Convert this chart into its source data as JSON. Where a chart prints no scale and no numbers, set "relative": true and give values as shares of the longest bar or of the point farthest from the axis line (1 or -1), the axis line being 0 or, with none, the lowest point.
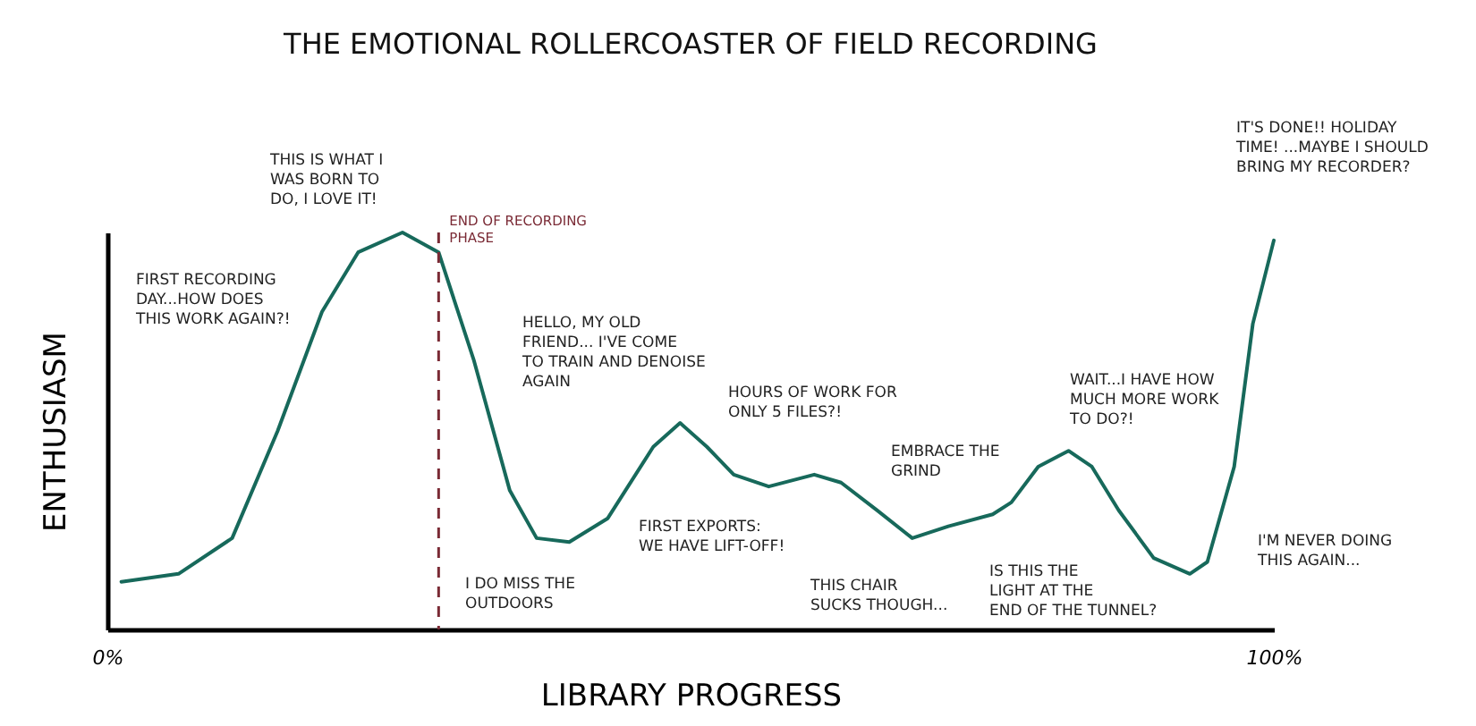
{
  "chart_data": {
    "type": "line",
    "title": "THE EMOTIONAL ROLLERCOASTER OF FIELD RECORDING",
    "xlabel": "LIBRARY PROGRESS",
    "ylabel": "ENTHUSIASM",
    "relative": true,
    "tick_labels": "x",
    "grid": false,
    "xlim": [
      0,
      100
    ],
    "xticks": [
      {
        "value": 0,
        "label": "0%"
      },
      {
        "value": 100,
        "label": "100%"
      }
    ],
    "x": [
      1.2,
      6.1,
      10.7,
      14.6,
      18.4,
      21.5,
      25.3,
      28.4,
      31.4,
      34.5,
      36.8,
      39.6,
      42.9,
      46.8,
      49.1,
      51.4,
      53.7,
      56.7,
      60.6,
      62.9,
      66.0,
      69.0,
      72.1,
      75.9,
      77.5,
      79.8,
      82.4,
      84.4,
      86.7,
      89.7,
      92.8,
      94.3,
      96.6,
      98.2,
      100
    ],
    "series": [
      {
        "color": "#17695b",
        "values": [
          0.12,
          0.14,
          0.23,
          0.5,
          0.8,
          0.95,
          1,
          0.95,
          0.68,
          0.35,
          0.23,
          0.22,
          0.28,
          0.46,
          0.52,
          0.46,
          0.39,
          0.36,
          0.39,
          0.37,
          0.3,
          0.23,
          0.26,
          0.29,
          0.32,
          0.41,
          0.45,
          0.41,
          0.3,
          0.18,
          0.14,
          0.17,
          0.41,
          0.77,
          0.98
        ]
      }
    ],
    "ref_lines": [
      {
        "axis": "x",
        "value": 28.4,
        "label": "END OF RECORDING\nPHASE",
        "color": "#7a2a35",
        "line_style": "dashed"
      }
    ],
    "annotations": [
      "FIRST RECORDING\nDAY...HOW DOES\nTHIS WORK AGAIN?!",
      "THIS IS WHAT I\nWAS BORN TO\nDO, I LOVE IT!",
      "HELLO, MY OLD\nFRIEND... I'VE COME\nTO TRAIN AND DENOISE\nAGAIN",
      "I DO MISS THE\nOUTDOORS",
      "FIRST EXPORTS:\nWE HAVE LIFT-OFF!",
      "HOURS OF WORK FOR\nONLY 5 FILES?!",
      "EMBRACE THE\nGRIND",
      "THIS CHAIR\nSUCKS THOUGH...",
      "IS THIS THE\nLIGHT AT THE\nEND OF THE TUNNEL?",
      "WAIT...I HAVE HOW\nMUCH MORE WORK\nTO DO?!",
      "I'M NEVER DOING\nTHIS AGAIN...",
      "IT'S DONE!! HOLIDAY\nTIME! ...MAYBE I SHOULD\nBRING MY RECORDER?"
    ]
  }
}
